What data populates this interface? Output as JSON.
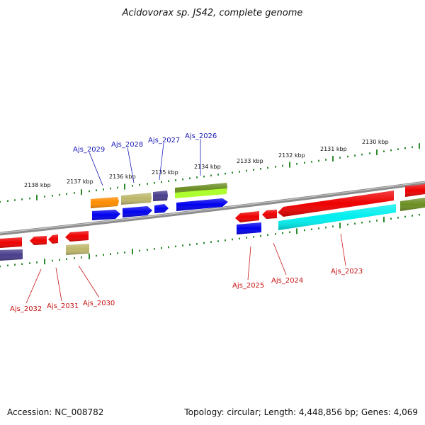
{
  "title": "Acidovorax sp. JS42, complete genome",
  "footer": {
    "accession": "Accession: NC_008782",
    "summary": "Topology: circular; Length: 4,448,856 bp; Genes: 4,069"
  },
  "colors": {
    "top_label": "#1a1ab8",
    "bottom_label": "#c81414",
    "tick": "#2e8b2e",
    "backbone": "#8c8c8c"
  },
  "kbp_labels": [
    "2138 kbp",
    "2137 kbp",
    "2136 kbp",
    "2135 kbp",
    "2134 kbp",
    "2133 kbp",
    "2132 kbp",
    "2131 kbp",
    "2130 kbp"
  ],
  "gene_labels": {
    "top": [
      "Ajs_2029",
      "Ajs_2028",
      "Ajs_2027",
      "Ajs_2026"
    ],
    "bottom": [
      "Ajs_2032",
      "Ajs_2031",
      "Ajs_2030",
      "Ajs_2025",
      "Ajs_2024",
      "Ajs_2023"
    ]
  }
}
